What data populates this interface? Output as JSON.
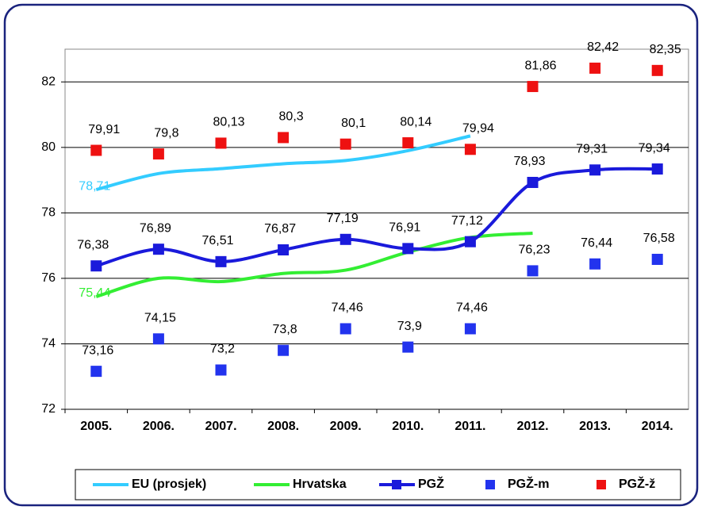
{
  "chart_data": {
    "type": "line",
    "categories": [
      "2005.",
      "2006.",
      "2007.",
      "2008.",
      "2009.",
      "2010.",
      "2011.",
      "2012.",
      "2013.",
      "2014."
    ],
    "ylim": [
      72,
      83
    ],
    "yticks": [
      72,
      74,
      76,
      78,
      80,
      82
    ],
    "grid": true,
    "legend": "bottom",
    "series": [
      {
        "name": "EU (prosjek)",
        "color": "#33ccff",
        "style": "line",
        "values": [
          78.71,
          79.2,
          79.35,
          79.5,
          79.6,
          79.9,
          80.35,
          null,
          null,
          null
        ],
        "value_labels": [
          "78,71",
          null,
          null,
          null,
          null,
          null,
          null,
          null,
          null,
          null
        ]
      },
      {
        "name": "Hrvatska",
        "color": "#33ee33",
        "style": "line",
        "values": [
          75.44,
          76.0,
          75.9,
          76.15,
          76.25,
          76.8,
          77.25,
          77.38,
          null,
          null
        ],
        "value_labels": [
          "75,44",
          null,
          null,
          null,
          null,
          null,
          null,
          null,
          null,
          null
        ]
      },
      {
        "name": "PGŽ",
        "color": "#1a1adb",
        "style": "line-marker",
        "values": [
          76.38,
          76.89,
          76.51,
          76.87,
          77.19,
          76.91,
          77.12,
          78.93,
          79.31,
          79.34
        ],
        "value_labels": [
          "76,38",
          "76,89",
          "76,51",
          "76,87",
          "77,19",
          "76,91",
          "77,12",
          "78,93",
          "79,31",
          "79,34"
        ]
      },
      {
        "name": "PGŽ-m",
        "color": "#2233ee",
        "style": "marker",
        "values": [
          73.16,
          74.15,
          73.2,
          73.8,
          74.46,
          73.9,
          74.46,
          76.23,
          76.44,
          76.58
        ],
        "value_labels": [
          "73,16",
          "74,15",
          "73,2",
          "73,8",
          "74,46",
          "73,9",
          "74,46",
          "76,23",
          "76,44",
          "76,58"
        ]
      },
      {
        "name": "PGŽ-ž",
        "color": "#ee1111",
        "style": "marker",
        "values": [
          79.91,
          79.8,
          80.13,
          80.3,
          80.1,
          80.14,
          79.94,
          81.86,
          82.42,
          82.35
        ],
        "value_labels": [
          "79,91",
          "79,8",
          "80,13",
          "80,3",
          "80,1",
          "80,14",
          "79,94",
          "81,86",
          "82,42",
          "82,35"
        ]
      }
    ]
  }
}
